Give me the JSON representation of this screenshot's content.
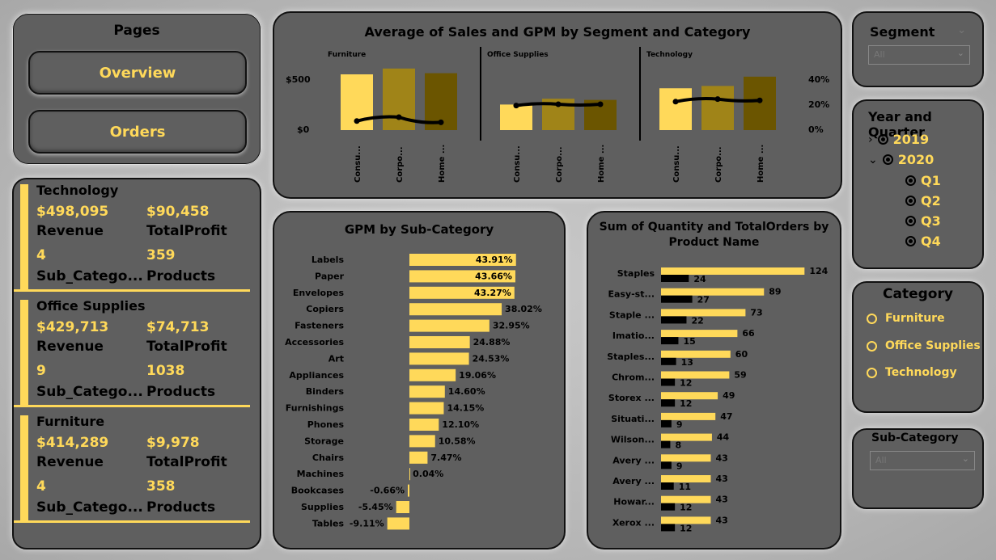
{
  "pages": {
    "title": "Pages",
    "buttons": [
      "Overview",
      "Orders"
    ]
  },
  "kpis": [
    {
      "title": "Technology",
      "revenue": "$498,095",
      "revenue_label": "Revenue",
      "profit": "$90,458",
      "profit_label": "TotalProfit",
      "subcat": "4",
      "subcat_label": "Sub_Catego...",
      "products": "359",
      "products_label": "Products"
    },
    {
      "title": "Office Supplies",
      "revenue": "$429,713",
      "revenue_label": "Revenue",
      "profit": "$74,713",
      "profit_label": "TotalProfit",
      "subcat": "9",
      "subcat_label": "Sub_Catego...",
      "products": "1038",
      "products_label": "Products"
    },
    {
      "title": "Furniture",
      "revenue": "$414,289",
      "revenue_label": "Revenue",
      "profit": "$9,978",
      "profit_label": "TotalProfit",
      "subcat": "4",
      "subcat_label": "Sub_Catego...",
      "products": "358",
      "products_label": "Products"
    }
  ],
  "combo_chart": {
    "title": "Average of Sales and GPM by Segment and Category",
    "y_left_ticks": [
      "$500",
      "$0"
    ],
    "y_right_ticks": [
      "40%",
      "20%",
      "0%"
    ],
    "groups": [
      "Furniture",
      "Office Supplies",
      "Technology"
    ],
    "segments": [
      "Consu...",
      "Corpo...",
      "Home ..."
    ],
    "sales": [
      [
        480,
        530,
        490
      ],
      [
        220,
        270,
        260
      ],
      [
        360,
        380,
        460
      ]
    ],
    "gpm": [
      7,
      10,
      6,
      19,
      20,
      20,
      22,
      24,
      23
    ],
    "ylim_sales": [
      0,
      800
    ],
    "ylim_gpm": [
      0,
      50
    ],
    "colors": [
      "#ffd95a",
      "#a08418",
      "#6b5500"
    ]
  },
  "gpm_chart": {
    "title": "GPM by Sub-Category",
    "categories": [
      "Labels",
      "Paper",
      "Envelopes",
      "Copiers",
      "Fasteners",
      "Accessories",
      "Art",
      "Appliances",
      "Binders",
      "Furnishings",
      "Phones",
      "Storage",
      "Chairs",
      "Machines",
      "Bookcases",
      "Supplies",
      "Tables"
    ],
    "values": [
      43.91,
      43.66,
      43.27,
      38.02,
      32.95,
      24.88,
      24.53,
      19.06,
      14.6,
      14.15,
      12.1,
      10.58,
      7.47,
      0.04,
      -0.66,
      -5.45,
      -9.11
    ],
    "labels": [
      "43.91%",
      "43.66%",
      "43.27%",
      "38.02%",
      "32.95%",
      "24.88%",
      "24.53%",
      "19.06%",
      "14.60%",
      "14.15%",
      "12.10%",
      "10.58%",
      "7.47%",
      "0.04%",
      "-0.66%",
      "-5.45%",
      "-9.11%"
    ],
    "color": "#ffd95a"
  },
  "qty_chart": {
    "title_line1": "Sum of Quantity and TotalOrders by",
    "title_line2": "Product Name",
    "categories": [
      "Staples",
      "Easy-st...",
      "Staple ...",
      "Imatio...",
      "Staples...",
      "Chrom...",
      "Storex ...",
      "Situati...",
      "Wilson...",
      "Avery ...",
      "Avery ...",
      "Howar...",
      "Xerox ..."
    ],
    "quantity": [
      124,
      89,
      73,
      66,
      60,
      59,
      49,
      47,
      44,
      43,
      43,
      43,
      43
    ],
    "orders": [
      24,
      27,
      22,
      15,
      13,
      12,
      12,
      9,
      8,
      9,
      11,
      12,
      12
    ],
    "colors": [
      "#ffd95a",
      "#000000"
    ]
  },
  "slicers": {
    "segment": {
      "title": "Segment",
      "value": "All"
    },
    "year_quarter": {
      "title": "Year and Quarter",
      "years": [
        "2019",
        "2020"
      ],
      "quarters": [
        "Q1",
        "Q2",
        "Q3",
        "Q4"
      ]
    },
    "category": {
      "title": "Category",
      "options": [
        "Furniture",
        "Office Supplies",
        "Technology"
      ]
    },
    "subcategory": {
      "title": "Sub-Category",
      "value": "All"
    }
  }
}
